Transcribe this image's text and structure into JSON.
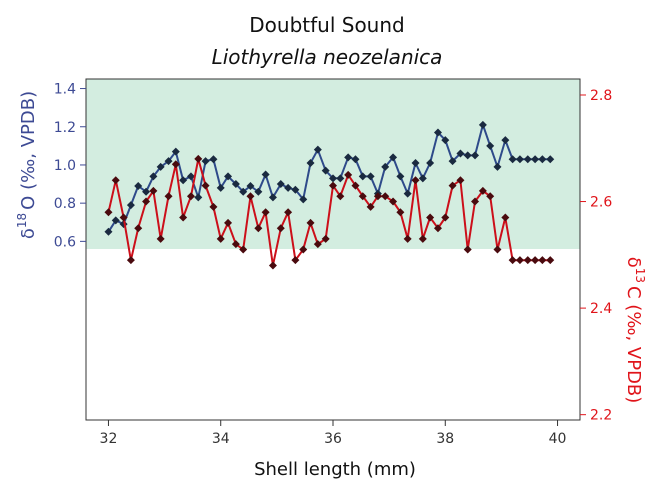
{
  "chart_data": {
    "type": "line",
    "title": "Doubtful Sound",
    "subtitle": "Liothyrella neozelanica",
    "xlabel": "Shell length (mm)",
    "xlim": [
      31.6,
      40.4
    ],
    "x_ticks": [
      32,
      34,
      36,
      38,
      40
    ],
    "y_left": {
      "label_prefix": "δ",
      "label_sup": "18",
      "label_suffix": "O (‰, VPDB)",
      "ticks": [
        0.6,
        0.8,
        1.0,
        1.2,
        1.4
      ],
      "tick_labels": [
        "0.6",
        "0.8",
        "1.0",
        "1.2",
        "1.4"
      ],
      "lim": [
        0.56,
        1.45
      ],
      "color": "#3d4a94"
    },
    "y_right": {
      "label_prefix": "δ",
      "label_sup": "13",
      "label_suffix": "C (‰, VPDB)",
      "ticks": [
        2.2,
        2.4,
        2.6,
        2.8
      ],
      "tick_labels": [
        "2.2",
        "2.4",
        "2.6",
        "2.8"
      ],
      "lim": [
        2.19,
        2.83
      ],
      "color": "#e0141a"
    },
    "highlight_band": {
      "color": "#d3ede0",
      "ymin": 0.56,
      "ymax": 1.45
    },
    "series": [
      {
        "axis": "left",
        "line_color": "#2e4a8a",
        "marker_color": "#1a2a40",
        "marker": "diamond",
        "x": [
          32.0,
          32.13,
          32.27,
          32.4,
          32.53,
          32.67,
          32.8,
          32.93,
          33.07,
          33.2,
          33.33,
          33.47,
          33.6,
          33.73,
          33.87,
          34.0,
          34.13,
          34.27,
          34.4,
          34.53,
          34.67,
          34.8,
          34.93,
          35.07,
          35.2,
          35.33,
          35.47,
          35.6,
          35.73,
          35.87,
          36.0,
          36.13,
          36.27,
          36.4,
          36.53,
          36.67,
          36.8,
          36.93,
          37.07,
          37.2,
          37.33,
          37.47,
          37.6,
          37.73,
          37.87,
          38.0,
          38.13,
          38.27,
          38.4,
          38.53,
          38.67,
          38.8,
          38.93,
          39.07,
          39.2,
          39.33,
          39.47,
          39.6,
          39.73,
          39.87
        ],
        "y": [
          0.65,
          0.71,
          0.69,
          0.79,
          0.89,
          0.86,
          0.94,
          0.99,
          1.02,
          1.07,
          0.92,
          0.94,
          0.83,
          1.02,
          1.03,
          0.88,
          0.94,
          0.9,
          0.86,
          0.89,
          0.86,
          0.95,
          0.83,
          0.9,
          0.88,
          0.87,
          0.82,
          1.01,
          1.08,
          0.97,
          0.93,
          0.93,
          1.04,
          1.03,
          0.94,
          0.94,
          0.85,
          0.99,
          1.04,
          0.94,
          0.85,
          1.01,
          0.93,
          1.01,
          1.17,
          1.13,
          1.02,
          1.06,
          1.05,
          1.05,
          1.21,
          1.1,
          0.99,
          1.13,
          1.03,
          1.03,
          1.03,
          1.03,
          1.03,
          1.03
        ]
      },
      {
        "axis": "right",
        "line_color": "#cc0f1a",
        "marker_color": "#4a0a0e",
        "marker": "diamond",
        "x": [
          32.0,
          32.13,
          32.27,
          32.4,
          32.53,
          32.67,
          32.8,
          32.93,
          33.07,
          33.2,
          33.33,
          33.47,
          33.6,
          33.73,
          33.87,
          34.0,
          34.13,
          34.27,
          34.4,
          34.53,
          34.67,
          34.8,
          34.93,
          35.07,
          35.2,
          35.33,
          35.47,
          35.6,
          35.73,
          35.87,
          36.0,
          36.13,
          36.27,
          36.4,
          36.53,
          36.67,
          36.8,
          36.93,
          37.07,
          37.2,
          37.33,
          37.47,
          37.6,
          37.73,
          37.87,
          38.0,
          38.13,
          38.27,
          38.4,
          38.53,
          38.67,
          38.8,
          38.93,
          39.07,
          39.2,
          39.33,
          39.47,
          39.6,
          39.73,
          39.87
        ],
        "y": [
          2.58,
          2.64,
          2.57,
          2.49,
          2.55,
          2.6,
          2.62,
          2.53,
          2.61,
          2.67,
          2.57,
          2.61,
          2.68,
          2.63,
          2.59,
          2.53,
          2.56,
          2.52,
          2.51,
          2.61,
          2.55,
          2.58,
          2.48,
          2.55,
          2.58,
          2.49,
          2.51,
          2.56,
          2.52,
          2.53,
          2.63,
          2.61,
          2.65,
          2.63,
          2.61,
          2.59,
          2.61,
          2.61,
          2.6,
          2.58,
          2.53,
          2.64,
          2.53,
          2.57,
          2.55,
          2.57,
          2.63,
          2.64,
          2.51,
          2.6,
          2.62,
          2.61,
          2.51,
          2.57,
          2.49,
          2.49,
          2.49,
          2.49,
          2.49,
          2.49
        ]
      }
    ]
  }
}
